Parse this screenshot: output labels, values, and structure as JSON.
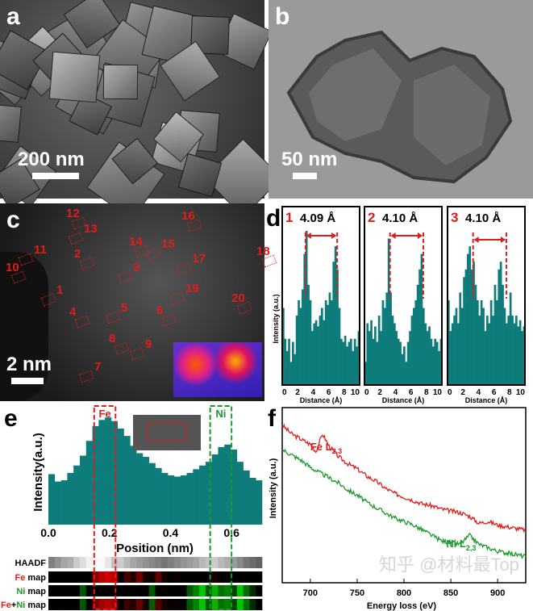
{
  "panels": {
    "a": {
      "label": "a",
      "scale": "200 nm"
    },
    "b": {
      "label": "b",
      "scale": "50 nm"
    },
    "c": {
      "label": "c",
      "scale": "2 nm",
      "sites": [
        "1",
        "2",
        "3",
        "4",
        "5",
        "6",
        "7",
        "8",
        "9",
        "10",
        "11",
        "12",
        "13",
        "14",
        "15",
        "16",
        "17",
        "18",
        "19",
        "20"
      ]
    },
    "d": {
      "label": "d"
    },
    "e": {
      "label": "e"
    },
    "f": {
      "label": "f"
    }
  },
  "watermark": "知乎 @材料最Top",
  "colors": {
    "teal": "#0e7c7b",
    "red": "#e21b1b",
    "green": "#1a9a2a"
  },
  "chart_data": [
    {
      "type": "bar",
      "panel": "d",
      "ylabel": "Intensity (a.u.)",
      "xlabel": "Distance (Å)",
      "xlim": [
        0,
        10
      ],
      "xticks": [
        "0",
        "2",
        "4",
        "6",
        "8",
        "10"
      ],
      "subplots": [
        {
          "id": "1",
          "annotation": "4.09 Å",
          "markers": [
            3.0,
            7.1
          ],
          "values": [
            0.5,
            0.3,
            0.22,
            0.3,
            0.15,
            0.28,
            0.2,
            0.45,
            0.55,
            0.5,
            0.62,
            0.85,
            1.0,
            0.65,
            0.55,
            0.35,
            0.4,
            0.42,
            0.38,
            0.45,
            0.5,
            0.42,
            0.55,
            0.52,
            0.6,
            0.55,
            0.8,
            0.9,
            0.75,
            0.5,
            0.3,
            0.28,
            0.32,
            0.25,
            0.28,
            0.3,
            0.22,
            0.3,
            0.25,
            0.35
          ]
        },
        {
          "id": "2",
          "annotation": "4.10 Å",
          "markers": [
            3.3,
            7.6
          ],
          "values": [
            0.15,
            0.4,
            0.35,
            0.42,
            0.3,
            0.38,
            0.28,
            0.45,
            0.35,
            0.55,
            0.5,
            0.6,
            0.95,
            0.6,
            0.45,
            0.4,
            0.35,
            0.3,
            0.28,
            0.2,
            0.25,
            0.15,
            0.28,
            0.35,
            0.45,
            0.5,
            0.55,
            0.65,
            0.75,
            0.85,
            0.5,
            0.4,
            0.35,
            0.38,
            0.3,
            0.25,
            0.3,
            0.28,
            0.22,
            0.3
          ]
        },
        {
          "id": "3",
          "annotation": "4.10 Å",
          "markers": [
            3.3,
            7.6
          ],
          "values": [
            0.55,
            0.35,
            0.4,
            0.45,
            0.5,
            0.4,
            0.6,
            0.5,
            0.7,
            0.75,
            0.85,
            0.9,
            0.75,
            0.8,
            0.65,
            0.55,
            0.45,
            0.55,
            0.5,
            0.35,
            0.45,
            0.4,
            0.55,
            0.45,
            0.65,
            0.55,
            0.75,
            0.8,
            0.65,
            0.5,
            0.4,
            0.45,
            0.6,
            0.45,
            0.4,
            0.45,
            0.38,
            0.42,
            0.35,
            0.38
          ]
        }
      ]
    },
    {
      "type": "bar",
      "panel": "e",
      "ylabel": "Intensity(a.u.)",
      "xlabel": "Position (nm)",
      "xlim": [
        0,
        0.7
      ],
      "xticks": [
        "0.0",
        "0.2",
        "0.4",
        "0.6"
      ],
      "regions": [
        {
          "label": "Fe",
          "range": [
            0.15,
            0.22
          ]
        },
        {
          "label": "Ni",
          "range": [
            0.53,
            0.6
          ]
        }
      ],
      "values": [
        0.41,
        0.35,
        0.36,
        0.42,
        0.48,
        0.56,
        0.68,
        0.8,
        0.85,
        0.87,
        0.84,
        0.78,
        0.72,
        0.64,
        0.58,
        0.55,
        0.5,
        0.46,
        0.42,
        0.4,
        0.39,
        0.4,
        0.42,
        0.45,
        0.48,
        0.51,
        0.57,
        0.63,
        0.65,
        0.61,
        0.51,
        0.44,
        0.38,
        0.36
      ],
      "maps": [
        {
          "label": "HAADF",
          "type": "gray",
          "values": [
            0.35,
            0.45,
            0.55,
            0.6,
            0.75,
            0.85,
            0.95,
            1,
            1,
            0.9,
            0.7,
            0.75,
            0.65,
            0.55,
            0.5,
            0.45,
            0.4,
            0.35,
            0.3,
            0.35,
            0.4,
            0.45,
            0.5,
            0.55,
            0.65,
            0.7,
            0.75,
            0.65,
            0.6,
            0.5,
            0.4,
            0.3,
            0.25,
            0.2
          ]
        },
        {
          "label_a": "Fe",
          "label_b": " map",
          "type": "fe",
          "values": [
            0,
            0,
            0,
            0,
            0,
            0,
            0,
            0.6,
            0.8,
            0.9,
            0.8,
            0,
            0.3,
            0.15,
            0.5,
            0.1,
            0.05,
            0.4,
            0.1,
            0,
            0.05,
            0,
            0,
            0,
            0,
            0,
            0.1,
            0,
            0,
            0,
            0,
            0,
            0,
            0
          ]
        },
        {
          "label_a": "Ni",
          "label_b": " map",
          "type": "ni",
          "values": [
            0,
            0,
            0,
            0,
            0,
            0.4,
            0,
            0,
            0,
            0,
            0,
            0,
            0,
            0,
            0,
            0,
            0.4,
            0,
            0,
            0,
            0,
            0,
            0.4,
            0.6,
            0.9,
            0.4,
            0.8,
            0.5,
            0.6,
            0.3,
            0.9,
            0.5,
            0.2,
            0
          ]
        },
        {
          "label_a": "Fe",
          "label_b": "+",
          "label_c": "Ni",
          "label_d": " map",
          "type": "both",
          "fe": [
            0,
            0,
            0,
            0,
            0,
            0,
            0,
            0.6,
            0.8,
            0.9,
            0.8,
            0,
            0.3,
            0.15,
            0.5,
            0.1,
            0.05,
            0.4,
            0.1,
            0,
            0.05,
            0,
            0,
            0,
            0,
            0,
            0.1,
            0,
            0,
            0,
            0,
            0,
            0,
            0
          ],
          "ni": [
            0,
            0,
            0,
            0,
            0,
            0.4,
            0,
            0,
            0,
            0,
            0,
            0,
            0,
            0,
            0,
            0,
            0.4,
            0,
            0,
            0,
            0,
            0,
            0.4,
            0.6,
            0.9,
            0.4,
            0.8,
            0.5,
            0.6,
            0.3,
            0.9,
            0.5,
            0.2,
            0
          ]
        }
      ]
    },
    {
      "type": "line",
      "panel": "f",
      "ylabel": "Intensity (a.u.)",
      "xlabel": "Energy loss (eV)",
      "xlim": [
        670,
        930
      ],
      "xticks": [
        "700",
        "750",
        "800",
        "850",
        "900"
      ],
      "x": [
        670,
        680,
        690,
        700,
        706,
        713,
        720,
        730,
        740,
        750,
        760,
        770,
        780,
        790,
        800,
        810,
        820,
        830,
        840,
        850,
        860,
        870,
        880,
        890,
        900,
        910,
        920,
        930
      ],
      "series": [
        {
          "name": "Fe L2,3",
          "label_main": "Fe L",
          "label_sub": "2,3",
          "values": [
            0.9,
            0.85,
            0.82,
            0.79,
            0.75,
            0.85,
            0.78,
            0.72,
            0.68,
            0.65,
            0.61,
            0.58,
            0.54,
            0.51,
            0.49,
            0.47,
            0.45,
            0.44,
            0.42,
            0.41,
            0.4,
            0.38,
            0.34,
            0.35,
            0.33,
            0.32,
            0.31,
            0.3
          ]
        },
        {
          "name": "Ni L2,3",
          "label_main": "Ni L",
          "label_sub": "2,3",
          "values": [
            0.76,
            0.73,
            0.7,
            0.66,
            0.64,
            0.62,
            0.6,
            0.57,
            0.53,
            0.5,
            0.46,
            0.43,
            0.4,
            0.37,
            0.35,
            0.33,
            0.3,
            0.27,
            0.24,
            0.23,
            0.22,
            0.27,
            0.22,
            0.2,
            0.18,
            0.17,
            0.16,
            0.15
          ]
        }
      ]
    }
  ]
}
